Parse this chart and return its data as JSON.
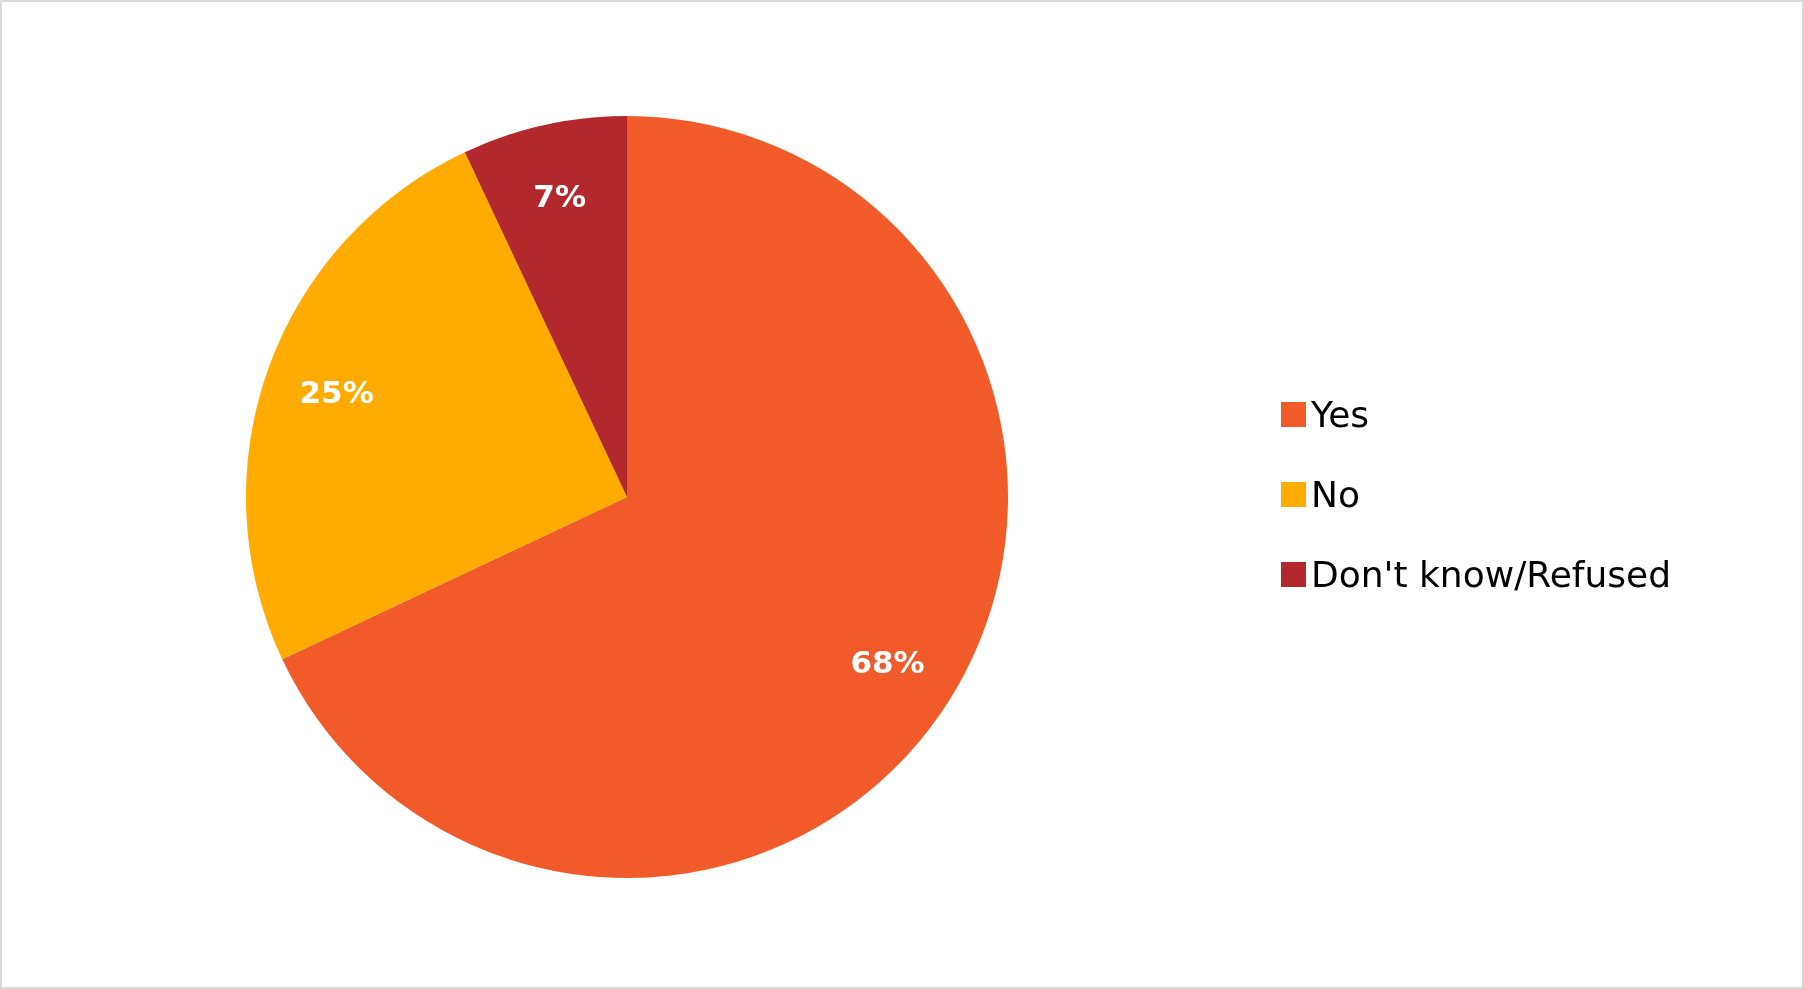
{
  "chart_data": {
    "type": "pie",
    "categories": [
      "Yes",
      "No",
      "Don't know/Refused"
    ],
    "values": [
      68,
      25,
      7
    ],
    "colors": [
      "#f15a29",
      "#ffab00",
      "#b3282d"
    ],
    "value_labels": [
      "68%",
      "25%",
      "7%"
    ],
    "legend": "right"
  }
}
